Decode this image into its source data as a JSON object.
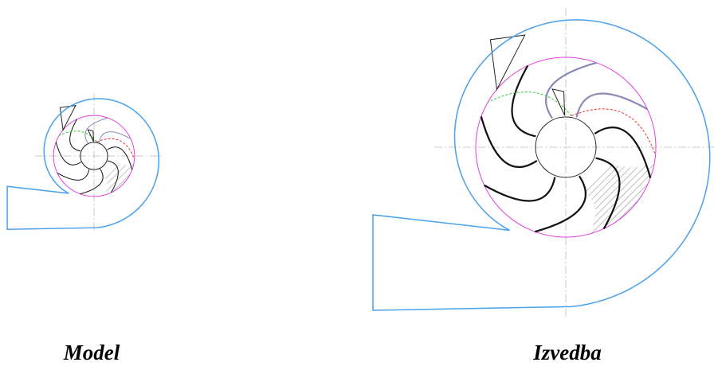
{
  "labels": {
    "model": "Model",
    "full_scale": "Izvedba"
  }
}
